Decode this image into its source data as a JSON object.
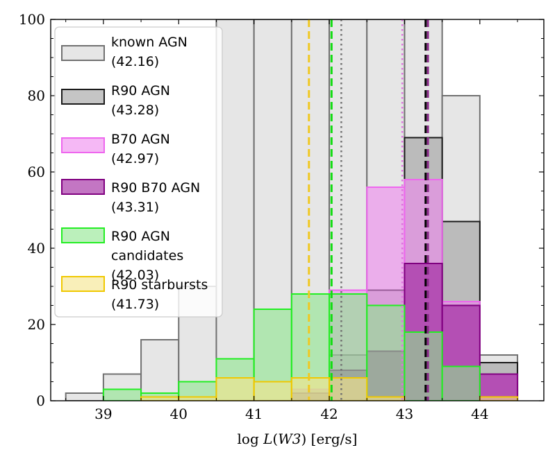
{
  "chart_data": {
    "type": "histogram",
    "title": "",
    "xlabel_prefix": "log ",
    "xlabel_var": "L",
    "xlabel_arg": "W3",
    "xlabel_units": "[erg/s]",
    "ylabel": "",
    "xlim": [
      38.3,
      44.85
    ],
    "ylim": [
      0,
      100
    ],
    "xticks": [
      39,
      40,
      41,
      42,
      43,
      44
    ],
    "yticks": [
      0,
      20,
      40,
      60,
      80,
      100
    ],
    "bin_edges": [
      38.5,
      39.0,
      39.5,
      40.0,
      40.5,
      41.0,
      41.5,
      42.0,
      42.5,
      43.0,
      43.5,
      44.0,
      44.5
    ],
    "series": [
      {
        "name": "known AGN",
        "median": "(42.16)",
        "fill": "#e6e6e6",
        "edge": "#707070",
        "values": [
          2,
          7,
          16,
          30,
          100,
          100,
          100,
          100,
          100,
          100,
          80,
          12
        ],
        "median_value": 42.16,
        "median_style": "dotted",
        "median_color": "#707070"
      },
      {
        "name": "R90 AGN",
        "median": "(43.28)",
        "fill": "#9e9e9e",
        "edge": "#1a1a1a",
        "values": [
          0,
          0,
          0,
          0,
          0,
          0,
          3,
          12,
          29,
          69,
          47,
          10
        ],
        "median_value": 43.28,
        "median_style": "dashed",
        "median_color": "#000000"
      },
      {
        "name": "B70 AGN",
        "median": "(42.97)",
        "fill": "#ee88ee",
        "edge": "#ee66ee",
        "values": [
          0,
          0,
          0,
          0,
          0,
          0,
          3,
          29,
          56,
          58,
          26,
          7
        ],
        "median_value": 42.97,
        "median_style": "dotted",
        "median_color": "#e070e0"
      },
      {
        "name": "R90 B70 AGN",
        "median": "(43.31)",
        "fill": "#9b1a9b",
        "edge": "#800080",
        "values": [
          0,
          0,
          0,
          0,
          0,
          0,
          2,
          8,
          13,
          36,
          25,
          7
        ],
        "median_value": 43.31,
        "median_style": "dashed",
        "median_color": "#8a2a8a"
      },
      {
        "name": "R90 AGN",
        "name_line2": "candidates",
        "median": "(42.03)",
        "fill": "#8ee68e",
        "edge": "#22ee22",
        "values": [
          0,
          3,
          2,
          5,
          11,
          24,
          28,
          28,
          25,
          18,
          9,
          0
        ],
        "median_value": 42.03,
        "median_style": "dashed",
        "median_color": "#11dd11"
      },
      {
        "name": "R90 starbursts",
        "median": "(41.73)",
        "fill": "#f5e58a",
        "edge": "#f0c800",
        "values": [
          0,
          0,
          1,
          1,
          6,
          5,
          6,
          6,
          1,
          0,
          0,
          1
        ],
        "median_value": 41.73,
        "median_style": "dashed",
        "median_color": "#f0c820"
      }
    ],
    "legend": [
      {
        "line1": "known AGN",
        "line3": "(42.16)"
      },
      {
        "line1": "R90 AGN",
        "line3": "(43.28)"
      },
      {
        "line1": "B70 AGN",
        "line3": "(42.97)"
      },
      {
        "line1": "R90 B70 AGN",
        "line3": "(43.31)"
      },
      {
        "line1": "R90 AGN",
        "line2": "candidates",
        "line3": "(42.03)"
      },
      {
        "line1": "R90 starbursts",
        "line3": "(41.73)"
      }
    ],
    "legend_position": "upper-left"
  }
}
